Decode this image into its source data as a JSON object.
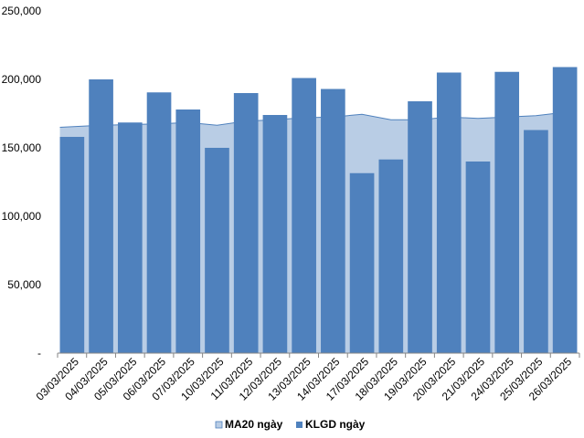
{
  "chart_data": {
    "type": "bar",
    "categories": [
      "03/03/2025",
      "04/03/2025",
      "05/03/2025",
      "06/03/2025",
      "07/03/2025",
      "10/03/2025",
      "11/03/2025",
      "12/03/2025",
      "13/03/2025",
      "14/03/2025",
      "17/03/2025",
      "18/03/2025",
      "19/03/2025",
      "20/03/2025",
      "21/03/2025",
      "24/03/2025",
      "25/03/2025",
      "26/03/2025"
    ],
    "y_tick_labels": [
      "-",
      "50,000",
      "100,000",
      "150,000",
      "200,000",
      "250,000"
    ],
    "ylim": [
      0,
      250000
    ],
    "grid": false,
    "legend_position": "bottom",
    "series": [
      {
        "name": "MA20 ngày",
        "type": "area",
        "color": "#b9cde5",
        "edge_color": "#4f81bd",
        "values": [
          165000,
          166500,
          167000,
          167500,
          168500,
          166500,
          169500,
          170500,
          172000,
          172500,
          174500,
          170500,
          170500,
          172500,
          171500,
          172500,
          173500,
          177000
        ]
      },
      {
        "name": "KLGD ngày",
        "type": "bar",
        "color": "#4f81bd",
        "values": [
          158000,
          200000,
          168500,
          190500,
          178000,
          150000,
          190000,
          174000,
          201000,
          193000,
          131500,
          141500,
          184000,
          205000,
          140000,
          205500,
          163000,
          209000
        ]
      }
    ]
  }
}
